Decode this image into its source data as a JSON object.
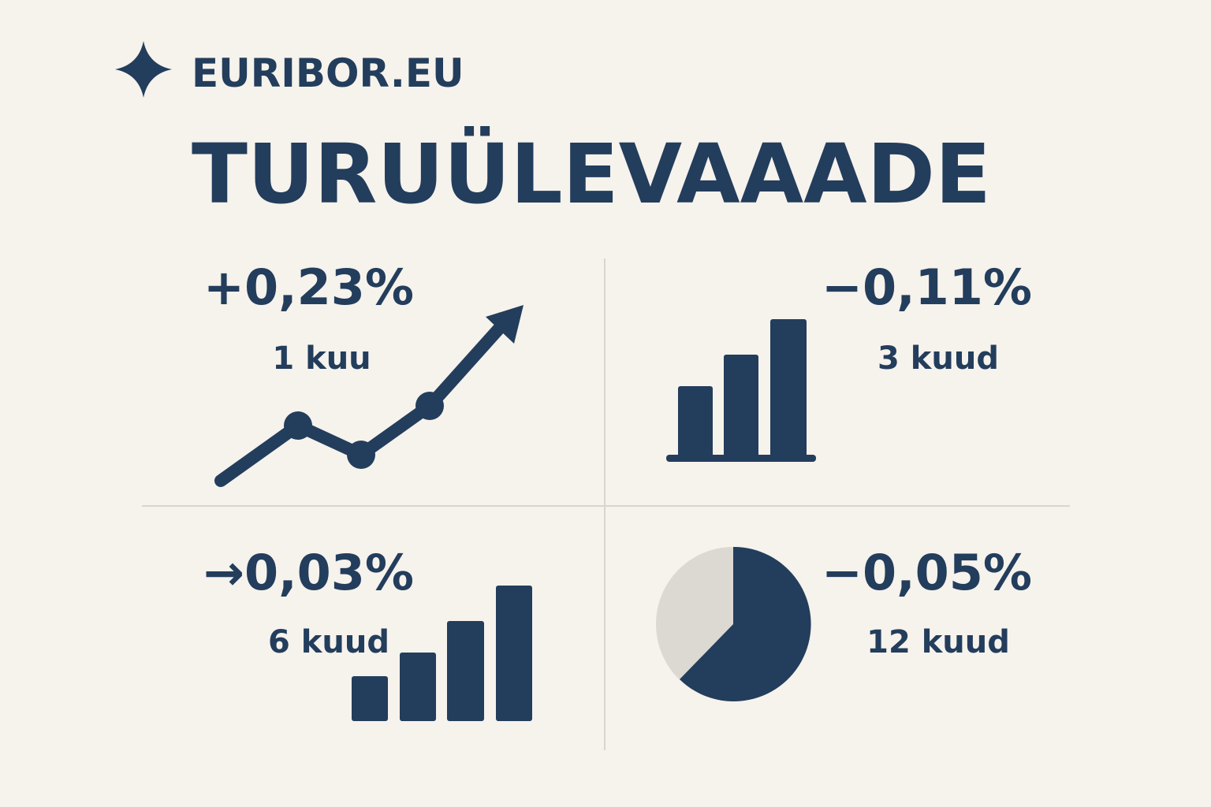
{
  "header": {
    "brand": "EURIBOR.EU",
    "title": "TURUÜLEVAAADE"
  },
  "tiles": [
    {
      "value": "+0,23%",
      "period": "1 kuu"
    },
    {
      "value": "−0,11%",
      "period": "3 kuud"
    },
    {
      "value": "→0,03%",
      "period": "6 kuud"
    },
    {
      "value": "−0,05%",
      "period": "12 kuud"
    }
  ]
}
